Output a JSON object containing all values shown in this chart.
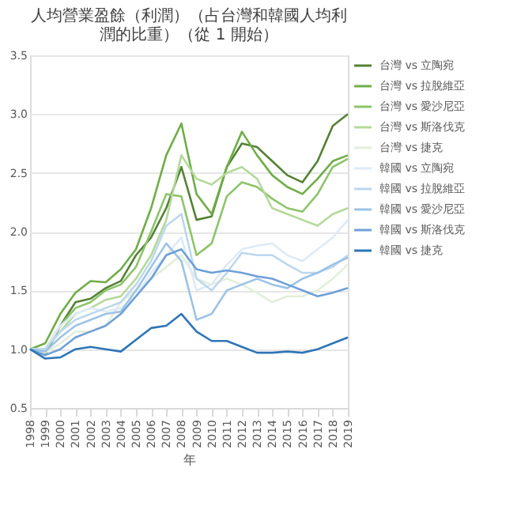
{
  "chart_data": {
    "type": "line",
    "title": "人均營業盈餘（利潤）（占台灣和韓國人均利潤的比重）（從 1 開始）",
    "xlabel": "年",
    "x": [
      1998,
      1999,
      2000,
      2001,
      2002,
      2003,
      2004,
      2005,
      2006,
      2007,
      2008,
      2009,
      2010,
      2011,
      2012,
      2013,
      2014,
      2015,
      2016,
      2017,
      2018,
      2019
    ],
    "xlim": [
      1998,
      2019
    ],
    "xticks": [
      1998,
      1999,
      2000,
      2001,
      2002,
      2003,
      2004,
      2005,
      2006,
      2007,
      2008,
      2009,
      2010,
      2011,
      2012,
      2013,
      2014,
      2015,
      2016,
      2017,
      2018,
      2019
    ],
    "ylim": [
      0.5,
      3.5
    ],
    "yticks": [
      0.5,
      {
        "value": 1,
        "label": "1.0"
      },
      1.5,
      {
        "value": 2,
        "label": "2.0"
      },
      2.5,
      {
        "value": 3,
        "label": "3.0"
      },
      3.5
    ],
    "grid": "y",
    "legend": "right",
    "marker": "none",
    "line_style": "solid",
    "series": [
      {
        "name": "台灣 vs 立陶宛",
        "color": "#548235",
        "values": [
          1.0,
          0.95,
          1.2,
          1.4,
          1.43,
          1.52,
          1.58,
          1.8,
          1.95,
          2.2,
          2.55,
          2.1,
          2.13,
          2.55,
          2.75,
          2.72,
          2.6,
          2.48,
          2.42,
          2.6,
          2.9,
          3.0
        ]
      },
      {
        "name": "台灣 vs 拉脫維亞",
        "color": "#70ad47",
        "values": [
          1.0,
          1.05,
          1.3,
          1.48,
          1.58,
          1.57,
          1.68,
          1.85,
          2.2,
          2.65,
          2.92,
          2.32,
          2.15,
          2.55,
          2.85,
          2.65,
          2.48,
          2.38,
          2.32,
          2.45,
          2.6,
          2.65
        ]
      },
      {
        "name": "台灣 vs 愛沙尼亞",
        "color": "#8dc46a",
        "values": [
          1.0,
          1.0,
          1.2,
          1.35,
          1.4,
          1.5,
          1.55,
          1.7,
          2.0,
          2.32,
          2.3,
          1.8,
          1.9,
          2.3,
          2.42,
          2.38,
          2.28,
          2.2,
          2.17,
          2.32,
          2.55,
          2.62
        ]
      },
      {
        "name": "台灣 vs 斯洛伐克",
        "color": "#b4d99a",
        "values": [
          1.0,
          1.0,
          1.15,
          1.3,
          1.35,
          1.42,
          1.45,
          1.6,
          1.8,
          2.1,
          2.65,
          2.45,
          2.4,
          2.5,
          2.55,
          2.45,
          2.2,
          2.15,
          2.1,
          2.05,
          2.15,
          2.2
        ]
      },
      {
        "name": "台灣 vs 捷克",
        "color": "#e2efda",
        "values": [
          1.0,
          0.97,
          1.05,
          1.15,
          1.15,
          1.2,
          1.4,
          1.5,
          1.6,
          1.7,
          1.8,
          1.6,
          1.55,
          1.6,
          1.55,
          1.48,
          1.4,
          1.45,
          1.45,
          1.5,
          1.6,
          1.72
        ]
      },
      {
        "name": "韓國 vs 立陶宛",
        "color": "#deebf7",
        "values": [
          1.0,
          1.0,
          1.2,
          1.3,
          1.35,
          1.32,
          1.35,
          1.45,
          1.65,
          1.8,
          1.95,
          1.5,
          1.55,
          1.72,
          1.85,
          1.88,
          1.9,
          1.8,
          1.75,
          1.85,
          1.95,
          2.1
        ]
      },
      {
        "name": "韓國 vs 拉脫維亞",
        "color": "#bdd7ee",
        "values": [
          1.0,
          1.0,
          1.15,
          1.25,
          1.3,
          1.35,
          1.4,
          1.55,
          1.75,
          2.05,
          2.15,
          1.6,
          1.5,
          1.65,
          1.82,
          1.8,
          1.8,
          1.72,
          1.65,
          1.65,
          1.7,
          1.8
        ]
      },
      {
        "name": "韓國 vs 愛沙尼亞",
        "color": "#9dc3e6",
        "values": [
          1.0,
          0.98,
          1.1,
          1.2,
          1.25,
          1.3,
          1.32,
          1.5,
          1.7,
          1.9,
          1.75,
          1.25,
          1.3,
          1.5,
          1.55,
          1.6,
          1.55,
          1.52,
          1.6,
          1.65,
          1.72,
          1.78
        ]
      },
      {
        "name": "韓國 vs 斯洛伐克",
        "color": "#6fa0d8",
        "values": [
          1.0,
          0.95,
          1.0,
          1.1,
          1.15,
          1.2,
          1.3,
          1.45,
          1.6,
          1.8,
          1.85,
          1.68,
          1.65,
          1.67,
          1.65,
          1.62,
          1.6,
          1.55,
          1.5,
          1.45,
          1.48,
          1.52
        ]
      },
      {
        "name": "韓國 vs 捷克",
        "color": "#2e75b6",
        "values": [
          1.0,
          0.92,
          0.93,
          1.0,
          1.02,
          1.0,
          0.98,
          1.08,
          1.18,
          1.2,
          1.3,
          1.15,
          1.07,
          1.07,
          1.02,
          0.97,
          0.97,
          0.98,
          0.97,
          1.0,
          1.05,
          1.1
        ]
      }
    ]
  }
}
